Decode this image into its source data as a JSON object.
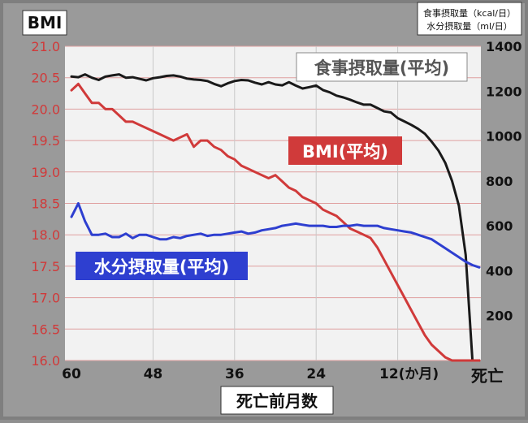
{
  "chart_data": {
    "type": "line",
    "title": "",
    "xlabel": "死亡前月数",
    "left_axis_label": "BMI",
    "right_axis_label_lines": [
      "食事摂取量（kcal/日）",
      "水分摂取量（ml/日）"
    ],
    "xlim": [
      60,
      0
    ],
    "x_ticks": [
      60,
      48,
      36,
      24,
      12
    ],
    "x_tick_labels": [
      "60",
      "48",
      "36",
      "24",
      "12(か月)"
    ],
    "x_end_label": "死亡",
    "left_ylim": [
      16.0,
      21.0
    ],
    "left_ticks": [
      "16.0",
      "16.5",
      "17.0",
      "17.5",
      "18.0",
      "18.5",
      "19.0",
      "19.5",
      "20.0",
      "20.5",
      "21.0"
    ],
    "right_ylim": [
      0,
      1400
    ],
    "right_ticks": [
      "200",
      "400",
      "600",
      "800",
      "1000",
      "1200",
      "1400"
    ],
    "grid": true,
    "colors": {
      "food": "#1a1a1a",
      "bmi": "#d03a3a",
      "water": "#2e3fd0",
      "panel": "#f2f2f2",
      "grid": "#e0a0a0"
    },
    "series": [
      {
        "key": "food",
        "name": "食事摂取量(平均)",
        "axis": "right",
        "x": [
          60,
          59,
          58,
          57,
          56,
          55,
          54,
          53,
          52,
          51,
          50,
          49,
          48,
          47,
          46,
          45,
          44,
          43,
          42,
          41,
          40,
          39,
          38,
          37,
          36,
          35,
          34,
          33,
          32,
          31,
          30,
          29,
          28,
          27,
          26,
          25,
          24,
          23,
          22,
          21,
          20,
          19,
          18,
          17,
          16,
          15,
          14,
          13,
          12,
          11,
          10,
          9,
          8,
          7,
          6,
          5,
          4,
          3,
          2,
          1,
          0
        ],
        "values": [
          1265,
          1262,
          1275,
          1260,
          1250,
          1265,
          1270,
          1275,
          1260,
          1262,
          1255,
          1248,
          1258,
          1262,
          1268,
          1270,
          1265,
          1256,
          1252,
          1250,
          1245,
          1232,
          1222,
          1235,
          1245,
          1250,
          1248,
          1238,
          1230,
          1240,
          1230,
          1226,
          1240,
          1225,
          1212,
          1218,
          1225,
          1205,
          1195,
          1180,
          1172,
          1162,
          1150,
          1140,
          1140,
          1125,
          1110,
          1105,
          1080,
          1065,
          1050,
          1032,
          1010,
          975,
          935,
          880,
          800,
          690,
          470,
          0,
          0
        ]
      },
      {
        "key": "bmi",
        "name": "BMI(平均)",
        "axis": "left",
        "x": [
          60,
          59,
          58,
          57,
          56,
          55,
          54,
          53,
          52,
          51,
          50,
          49,
          48,
          47,
          46,
          45,
          44,
          43,
          42,
          41,
          40,
          39,
          38,
          37,
          36,
          35,
          34,
          33,
          32,
          31,
          30,
          29,
          28,
          27,
          26,
          25,
          24,
          23,
          22,
          21,
          20,
          19,
          18,
          17,
          16,
          15,
          14,
          13,
          12,
          11,
          10,
          9,
          8,
          7,
          6,
          5,
          4,
          3,
          2,
          1,
          0
        ],
        "values": [
          20.3,
          20.4,
          20.25,
          20.1,
          20.1,
          20.0,
          20.0,
          19.9,
          19.8,
          19.8,
          19.75,
          19.7,
          19.65,
          19.6,
          19.55,
          19.5,
          19.55,
          19.6,
          19.4,
          19.5,
          19.5,
          19.4,
          19.35,
          19.25,
          19.2,
          19.1,
          19.05,
          19.0,
          18.95,
          18.9,
          18.95,
          18.85,
          18.75,
          18.7,
          18.6,
          18.55,
          18.5,
          18.4,
          18.35,
          18.3,
          18.2,
          18.1,
          18.05,
          18.0,
          17.95,
          17.8,
          17.6,
          17.4,
          17.2,
          17.0,
          16.8,
          16.6,
          16.4,
          16.25,
          16.15,
          16.05,
          16.0,
          16.0,
          16.0,
          16.0,
          16.0
        ]
      },
      {
        "key": "water",
        "name": "水分摂取量(平均)",
        "axis": "right",
        "x": [
          60,
          59,
          58,
          57,
          56,
          55,
          54,
          53,
          52,
          51,
          50,
          49,
          48,
          47,
          46,
          45,
          44,
          43,
          42,
          41,
          40,
          39,
          38,
          37,
          36,
          35,
          34,
          33,
          32,
          31,
          30,
          29,
          28,
          27,
          26,
          25,
          24,
          23,
          22,
          21,
          20,
          19,
          18,
          17,
          16,
          15,
          14,
          13,
          12,
          11,
          10,
          9,
          8,
          7,
          6,
          5,
          4,
          3,
          2,
          1,
          0
        ],
        "values": [
          640,
          700,
          620,
          560,
          560,
          565,
          550,
          550,
          565,
          545,
          560,
          560,
          550,
          540,
          540,
          550,
          545,
          555,
          560,
          565,
          555,
          560,
          560,
          565,
          570,
          575,
          565,
          570,
          580,
          585,
          590,
          600,
          605,
          610,
          605,
          600,
          600,
          600,
          595,
          595,
          600,
          600,
          605,
          600,
          600,
          600,
          590,
          585,
          580,
          575,
          570,
          560,
          550,
          540,
          520,
          500,
          480,
          460,
          440,
          425,
          415
        ]
      }
    ],
    "series_trimmed_note_removed": true
  }
}
